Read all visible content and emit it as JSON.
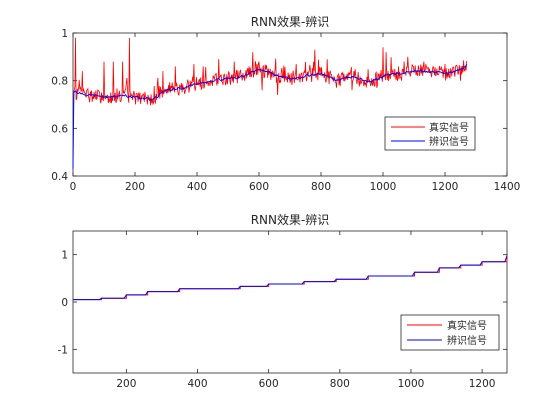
{
  "figure": {
    "background": "#ffffff",
    "axis_color": "#262626",
    "legend": {
      "real": "真实信号",
      "ident": "辨识信号"
    }
  },
  "chart_data": [
    {
      "type": "line",
      "title": "RNN效果-辨识",
      "xlabel": "",
      "ylabel": "",
      "xlim": [
        0,
        1400
      ],
      "ylim": [
        0.4,
        1.0
      ],
      "xticks": [
        0,
        200,
        400,
        600,
        800,
        1000,
        1200,
        1400
      ],
      "yticks": [
        0.4,
        0.6,
        0.8,
        1.0
      ],
      "ytick_labels": [
        "0.4",
        "0.6",
        "0.8",
        "1"
      ],
      "grid": false,
      "legend_position": "right, lower-middle",
      "n_points": 1270,
      "series": [
        {
          "name": "真实信号",
          "color": "#ff0000",
          "trend_x": [
            0,
            50,
            100,
            150,
            200,
            250,
            300,
            350,
            400,
            450,
            500,
            550,
            600,
            650,
            700,
            750,
            800,
            850,
            900,
            950,
            1000,
            1050,
            1100,
            1150,
            1200,
            1250,
            1270
          ],
          "trend_y": [
            0.75,
            0.74,
            0.73,
            0.74,
            0.73,
            0.72,
            0.76,
            0.77,
            0.79,
            0.8,
            0.81,
            0.82,
            0.85,
            0.82,
            0.81,
            0.82,
            0.83,
            0.8,
            0.82,
            0.79,
            0.82,
            0.83,
            0.84,
            0.84,
            0.83,
            0.85,
            0.87
          ],
          "spikes": [
            [
              8,
              0.98
            ],
            [
              30,
              0.84
            ],
            [
              55,
              0.86
            ],
            [
              75,
              0.87
            ],
            [
              100,
              0.88
            ],
            [
              130,
              0.88
            ],
            [
              160,
              0.88
            ],
            [
              182,
              0.98
            ],
            [
              195,
              0.87
            ],
            [
              215,
              0.85
            ],
            [
              255,
              0.97
            ],
            [
              290,
              0.84
            ],
            [
              330,
              0.86
            ],
            [
              345,
              0.89
            ],
            [
              390,
              0.87
            ],
            [
              420,
              0.86
            ],
            [
              470,
              0.89
            ],
            [
              520,
              0.88
            ],
            [
              580,
              0.92
            ],
            [
              600,
              0.88
            ],
            [
              665,
              0.93
            ],
            [
              720,
              0.87
            ],
            [
              780,
              0.93
            ],
            [
              820,
              0.89
            ],
            [
              875,
              0.89
            ],
            [
              935,
              0.9
            ],
            [
              1000,
              0.94
            ],
            [
              1010,
              0.92
            ],
            [
              1080,
              0.9
            ],
            [
              1140,
              0.86
            ],
            [
              1200,
              0.87
            ],
            [
              1255,
              0.92
            ]
          ],
          "dips": [
            [
              5,
              0.42
            ],
            [
              45,
              0.7
            ],
            [
              140,
              0.71
            ],
            [
              240,
              0.7
            ],
            [
              610,
              0.76
            ],
            [
              660,
              0.74
            ],
            [
              835,
              0.75
            ],
            [
              900,
              0.76
            ],
            [
              980,
              0.77
            ],
            [
              1060,
              0.8
            ],
            [
              1250,
              0.8
            ]
          ]
        },
        {
          "name": "辨识信号",
          "color": "#0000ff",
          "start": [
            [
              0,
              0.43
            ],
            [
              3,
              0.75
            ]
          ],
          "trend_x": [
            0,
            50,
            100,
            150,
            200,
            250,
            300,
            350,
            400,
            450,
            500,
            550,
            600,
            650,
            700,
            750,
            800,
            850,
            900,
            950,
            1000,
            1050,
            1100,
            1150,
            1200,
            1250,
            1270
          ],
          "trend_y": [
            0.75,
            0.74,
            0.73,
            0.74,
            0.73,
            0.72,
            0.76,
            0.77,
            0.79,
            0.8,
            0.81,
            0.82,
            0.85,
            0.82,
            0.81,
            0.82,
            0.83,
            0.8,
            0.82,
            0.79,
            0.82,
            0.83,
            0.84,
            0.84,
            0.83,
            0.85,
            0.87
          ]
        }
      ]
    },
    {
      "type": "line",
      "title": "RNN效果-辨识",
      "xlabel": "",
      "ylabel": "",
      "xlim": [
        50,
        1270
      ],
      "ylim": [
        -1.5,
        1.5
      ],
      "xticks": [
        200,
        400,
        600,
        800,
        1000,
        1200
      ],
      "yticks": [
        -1,
        0,
        1
      ],
      "grid": false,
      "legend_position": "right, lower",
      "series": [
        {
          "name": "真实信号",
          "color": "#ff0000",
          "steps_x": [
            50,
            130,
            200,
            260,
            350,
            520,
            600,
            700,
            790,
            880,
            1010,
            1080,
            1140,
            1200,
            1270
          ],
          "steps_y": [
            0.05,
            0.08,
            0.15,
            0.22,
            0.28,
            0.33,
            0.38,
            0.43,
            0.48,
            0.55,
            0.63,
            0.72,
            0.78,
            0.85,
            0.98
          ]
        },
        {
          "name": "辨识信号",
          "color": "#0000ff",
          "steps_x": [
            50,
            130,
            200,
            260,
            350,
            520,
            600,
            700,
            790,
            880,
            1010,
            1080,
            1140,
            1200,
            1270
          ],
          "steps_y": [
            0.05,
            0.08,
            0.15,
            0.22,
            0.28,
            0.33,
            0.38,
            0.43,
            0.48,
            0.55,
            0.63,
            0.72,
            0.78,
            0.85,
            0.98
          ]
        }
      ]
    }
  ]
}
